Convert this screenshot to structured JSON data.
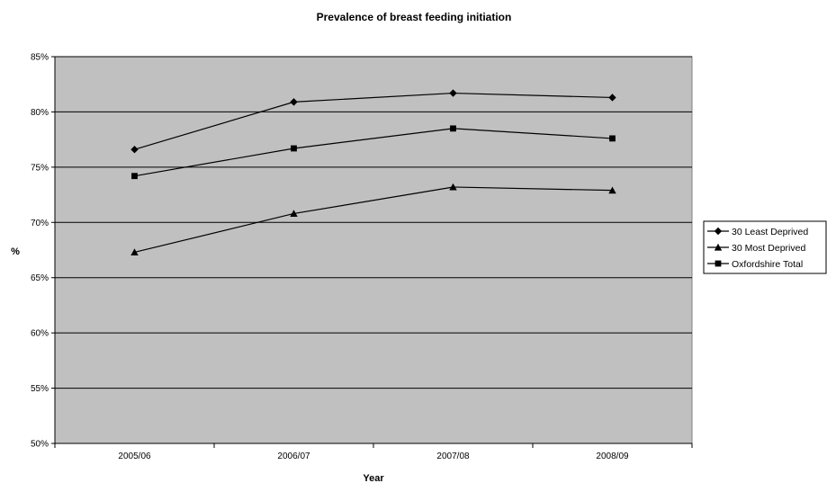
{
  "chart_data": {
    "type": "line",
    "title": "Prevalence of breast feeding initiation",
    "xlabel": "Year",
    "ylabel": "%",
    "categories": [
      "2005/06",
      "2006/07",
      "2007/08",
      "2008/09"
    ],
    "ylim": [
      50,
      85
    ],
    "yticks": [
      50,
      55,
      60,
      65,
      70,
      75,
      80,
      85
    ],
    "ytick_labels": [
      "50%",
      "55%",
      "60%",
      "65%",
      "70%",
      "75%",
      "80%",
      "85%"
    ],
    "grid": true,
    "legend_position": "right",
    "plot_background": "#c0c0c0",
    "line_color": "#000000",
    "series": [
      {
        "name": "30 Least Deprived",
        "marker": "diamond",
        "values": [
          76.6,
          80.9,
          81.7,
          81.3
        ]
      },
      {
        "name": "30 Most Deprived",
        "marker": "triangle",
        "values": [
          67.3,
          70.8,
          73.2,
          72.9
        ]
      },
      {
        "name": "Oxfordshire Total",
        "marker": "square",
        "values": [
          74.2,
          76.7,
          78.5,
          77.6
        ]
      }
    ]
  }
}
